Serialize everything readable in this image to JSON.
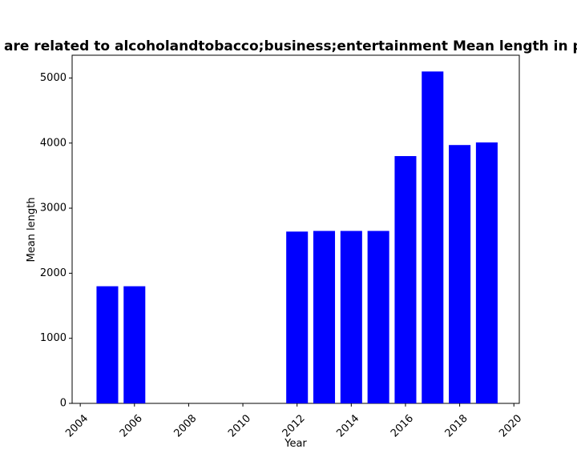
{
  "chart_data": {
    "type": "bar",
    "title": "are related to alcoholandtobacco;business;entertainment Mean length in priva",
    "xlabel": "Year",
    "ylabel": "Mean length",
    "x": [
      2005,
      2006,
      2012,
      2013,
      2014,
      2015,
      2016,
      2017,
      2018,
      2019
    ],
    "values": [
      1800,
      1800,
      2640,
      2650,
      2650,
      2650,
      3800,
      5100,
      3970,
      4010
    ],
    "xlim": [
      2003.7,
      2020.2
    ],
    "ylim": [
      0,
      5350
    ],
    "xticks": [
      2004,
      2006,
      2008,
      2010,
      2012,
      2014,
      2016,
      2018,
      2020
    ],
    "yticks": [
      0,
      1000,
      2000,
      3000,
      4000,
      5000
    ],
    "bar_color": "#0000ff",
    "grid": false,
    "legend": false
  }
}
